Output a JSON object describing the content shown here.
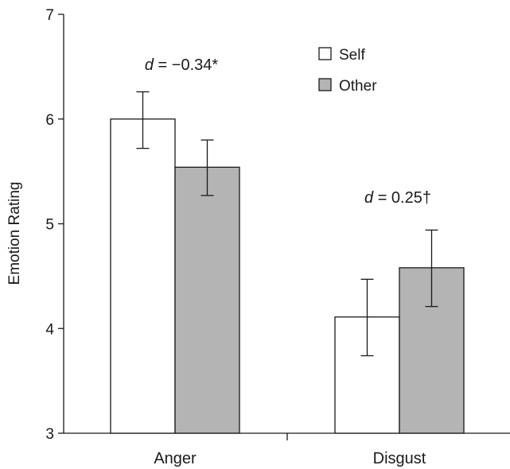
{
  "chart_data": {
    "type": "bar",
    "categories": [
      "Anger",
      "Disgust"
    ],
    "series": [
      {
        "name": "Self",
        "values": [
          6.0,
          4.11
        ],
        "error_low": [
          5.72,
          3.74
        ],
        "error_high": [
          6.26,
          4.47
        ],
        "color": "#ffffff"
      },
      {
        "name": "Other",
        "values": [
          5.54,
          4.58
        ],
        "error_low": [
          5.27,
          4.21
        ],
        "error_high": [
          5.8,
          4.94
        ],
        "color": "#b4b4b4"
      }
    ],
    "ylabel": "Emotion Rating",
    "xlabel": "",
    "ylim": [
      3,
      7
    ],
    "yticks": [
      "3",
      "4",
      "5",
      "6",
      "7"
    ],
    "legend": {
      "position": "top-right"
    },
    "annotations": [
      {
        "category": "Anger",
        "symbol": "d",
        "text": " = −0.34*"
      },
      {
        "category": "Disgust",
        "symbol": "d",
        "text": " = 0.25†"
      }
    ],
    "grid": false
  }
}
